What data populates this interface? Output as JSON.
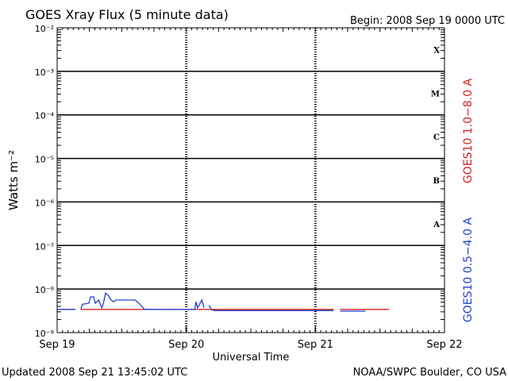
{
  "chart_data": {
    "type": "line",
    "title": "GOES Xray Flux (5 minute data)",
    "subtitle": "Begin:  2008 Sep 19 0000 UTC",
    "x_label": "Universal Time",
    "y_label": "Watts m⁻²",
    "footer_left": "Updated 2008 Sep 21 13:45:02 UTC",
    "footer_right": "NOAA/SWPC Boulder, CO USA",
    "log_y": true,
    "grid": true,
    "xlim": [
      0,
      72
    ],
    "xticks": [
      {
        "value": 0,
        "label": "Sep 19"
      },
      {
        "value": 24,
        "label": "Sep 20"
      },
      {
        "value": 48,
        "label": "Sep 21"
      },
      {
        "value": 72,
        "label": "Sep 22"
      }
    ],
    "ylim": [
      1e-09,
      0.01
    ],
    "yticks": [
      {
        "value": 1e-09,
        "label": "10⁻⁹"
      },
      {
        "value": 1e-08,
        "label": "10⁻⁸"
      },
      {
        "value": 1e-07,
        "label": "10⁻⁷"
      },
      {
        "value": 1e-06,
        "label": "10⁻⁶"
      },
      {
        "value": 1e-05,
        "label": "10⁻⁵"
      },
      {
        "value": 0.0001,
        "label": "10⁻⁴"
      },
      {
        "value": 0.001,
        "label": "10⁻³"
      },
      {
        "value": 0.01,
        "label": "10⁻²"
      }
    ],
    "flare_classes": [
      "A",
      "B",
      "C",
      "M",
      "X"
    ],
    "series": [
      {
        "name": "GOES10 1.0−8.0 A",
        "color": "#d62020",
        "x": [
          0,
          3.4,
          3.9,
          4.4,
          51.4,
          51.9,
          52.6,
          61.7
        ],
        "values": [
          3.4e-09,
          3.4e-09,
          null,
          3.4e-09,
          3.4e-09,
          null,
          3.4e-09,
          3.4e-09
        ]
      },
      {
        "name": "GOES10 0.5−4.0 A",
        "color": "#2040d0",
        "x": [
          0,
          3.4,
          3.9,
          4.4,
          4.7,
          5.9,
          6.2,
          6.8,
          7.1,
          7.7,
          8.3,
          8.6,
          9.0,
          9.5,
          10.0,
          10.5,
          10.9,
          14.5,
          15.2,
          16.0,
          16.2,
          25.6,
          25.8,
          26.1,
          26.9,
          27.3,
          27.7,
          28.2,
          28.7,
          29.2,
          51.4,
          51.9,
          52.6,
          57.3
        ],
        "values": [
          3.4e-09,
          3.4e-09,
          null,
          3.4e-09,
          4.5e-09,
          4.7e-09,
          6.6e-09,
          6.6e-09,
          4.7e-09,
          5.6e-09,
          3.7e-09,
          4.7e-09,
          8.1e-09,
          7.2e-09,
          5.6e-09,
          5.1e-09,
          5.6e-09,
          5.6e-09,
          4.7e-09,
          3.7e-09,
          3.4e-09,
          3.4e-09,
          5.1e-09,
          3.7e-09,
          5.6e-09,
          3.7e-09,
          null,
          4.2e-09,
          3.4e-09,
          3.2e-09,
          3.2e-09,
          null,
          3.1e-09,
          3.1e-09
        ]
      }
    ]
  }
}
